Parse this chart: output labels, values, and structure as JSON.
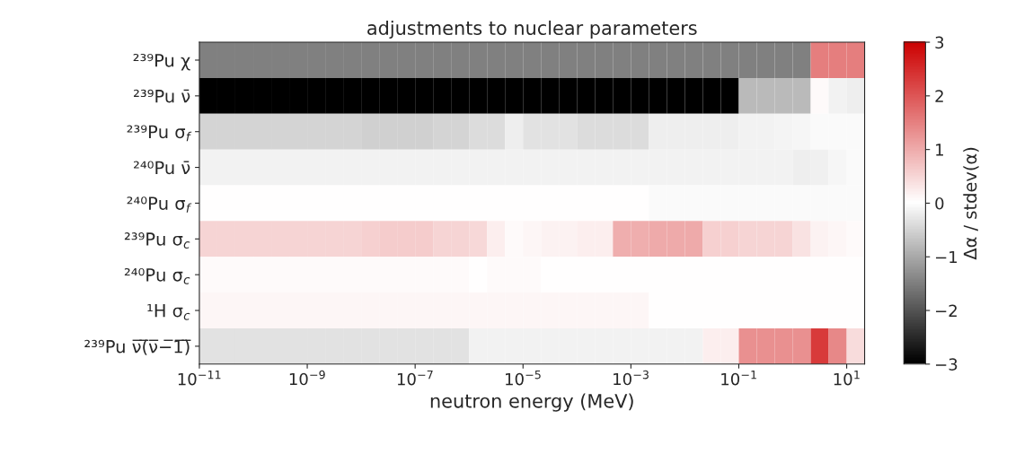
{
  "chart_data": {
    "type": "heatmap",
    "title": "adjustments to nuclear parameters",
    "xlabel": "neutron energy (MeV)",
    "clabel": "Δα / stdev(α)",
    "log": "x",
    "x": [
      1.47e-11,
      3.16e-11,
      6.81e-11,
      1.47e-10,
      3.16e-10,
      6.81e-10,
      1.47e-09,
      3.16e-09,
      6.81e-09,
      1.47e-08,
      3.16e-08,
      6.81e-08,
      1.47e-07,
      3.16e-07,
      6.81e-07,
      1.47e-06,
      3.16e-06,
      6.81e-06,
      1.47e-05,
      3.16e-05,
      6.81e-05,
      0.000147,
      0.000316,
      0.000681,
      0.00147,
      0.00316,
      0.00681,
      0.0147,
      0.0316,
      0.0681,
      0.147,
      0.316,
      0.681,
      1.47,
      3.16,
      6.81,
      14.7
    ],
    "xlim": [
      1e-11,
      21.5
    ],
    "xticks": [
      {
        "value": 1e-11,
        "label": "10$^{−11}$"
      },
      {
        "value": 1e-09,
        "label": "10$^{−9}$"
      },
      {
        "value": 1e-07,
        "label": "10$^{−7}$"
      },
      {
        "value": 1e-05,
        "label": "10$^{−5}$"
      },
      {
        "value": 0.001,
        "label": "10$^{−3}$"
      },
      {
        "value": 0.1,
        "label": "10$^{−1}$"
      },
      {
        "value": 10,
        "label": "10$^{1}$"
      }
    ],
    "y_categories": [
      "²³⁹Pu χ",
      "²³⁹Pu ν̄",
      "²³⁹Pu σ$_{f}$",
      "²⁴⁰Pu ν̄",
      "²⁴⁰Pu σ$_{f}$",
      "²³⁹Pu σ$_{c}$",
      "²⁴⁰Pu σ$_{c}$",
      "¹H σ$_{c}$",
      "²³⁹Pu ν̅(̅ν̅−̅1̅)̅"
    ],
    "cells": [
      [
        -1.5,
        -1.5,
        -1.5,
        -1.5,
        -1.5,
        -1.5,
        -1.5,
        -1.5,
        -1.5,
        -1.5,
        -1.5,
        -1.5,
        -1.5,
        -1.5,
        -1.5,
        -1.5,
        -1.5,
        -1.5,
        -1.5,
        -1.5,
        -1.5,
        -1.5,
        -1.5,
        -1.5,
        -1.5,
        -1.5,
        -1.5,
        -1.5,
        -1.5,
        -1.5,
        -1.5,
        -1.5,
        -1.5,
        -1.5,
        1.5,
        1.5,
        1.5
      ],
      [
        -3,
        -3,
        -3,
        -3,
        -3,
        -3,
        -3,
        -3,
        -3,
        -3,
        -3,
        -3,
        -3,
        -3,
        -3,
        -3,
        -3,
        -3,
        -3,
        -3,
        -3,
        -3,
        -3,
        -3,
        -3,
        -3,
        -3,
        -3,
        -3,
        -3,
        -0.8,
        -0.8,
        -0.8,
        -0.8,
        0.05,
        -0.15,
        -0.2
      ],
      [
        -0.5,
        -0.5,
        -0.5,
        -0.5,
        -0.5,
        -0.5,
        -0.5,
        -0.5,
        -0.5,
        -0.55,
        -0.55,
        -0.55,
        -0.55,
        -0.5,
        -0.5,
        -0.4,
        -0.4,
        -0.2,
        -0.35,
        -0.35,
        -0.35,
        -0.4,
        -0.4,
        -0.4,
        -0.4,
        -0.2,
        -0.2,
        -0.2,
        -0.2,
        -0.2,
        -0.15,
        -0.15,
        -0.12,
        -0.1,
        -0.05,
        -0.05,
        -0.05
      ],
      [
        -0.15,
        -0.15,
        -0.15,
        -0.15,
        -0.15,
        -0.15,
        -0.15,
        -0.15,
        -0.15,
        -0.15,
        -0.15,
        -0.15,
        -0.15,
        -0.15,
        -0.15,
        -0.15,
        -0.15,
        -0.15,
        -0.15,
        -0.15,
        -0.15,
        -0.15,
        -0.15,
        -0.15,
        -0.15,
        -0.15,
        -0.15,
        -0.15,
        -0.15,
        -0.15,
        -0.15,
        -0.15,
        -0.15,
        -0.2,
        -0.18,
        -0.1,
        -0.05
      ],
      [
        0,
        0,
        0,
        0,
        0,
        0,
        0,
        0,
        0,
        0,
        0,
        0,
        0,
        0,
        0,
        0,
        0,
        0,
        0,
        0,
        0,
        0,
        0,
        0,
        0,
        -0.05,
        -0.05,
        -0.05,
        -0.05,
        -0.05,
        -0.05,
        -0.05,
        -0.05,
        -0.05,
        -0.05,
        -0.05,
        -0.05
      ],
      [
        0.5,
        0.5,
        0.5,
        0.5,
        0.5,
        0.5,
        0.5,
        0.5,
        0.5,
        0.55,
        0.6,
        0.6,
        0.6,
        0.5,
        0.5,
        0.45,
        0.2,
        0.05,
        0.1,
        0.15,
        0.15,
        0.2,
        0.2,
        0.95,
        0.95,
        1.0,
        1.0,
        1.0,
        0.55,
        0.55,
        0.5,
        0.5,
        0.5,
        0.35,
        0.15,
        0.1,
        0.05
      ],
      [
        0.05,
        0.05,
        0.05,
        0.05,
        0.05,
        0.05,
        0.05,
        0.05,
        0.05,
        0.05,
        0.05,
        0.05,
        0.05,
        0.05,
        0.05,
        0,
        0.05,
        0.05,
        0.05,
        0,
        0,
        0,
        0,
        0,
        0,
        0,
        0,
        0,
        0,
        0,
        0,
        0,
        0,
        0,
        0,
        0,
        0
      ],
      [
        0.1,
        0.1,
        0.1,
        0.1,
        0.1,
        0.1,
        0.1,
        0.1,
        0.1,
        0.1,
        0.1,
        0.1,
        0.1,
        0.1,
        0.1,
        0.1,
        0.1,
        0.1,
        0.1,
        0.1,
        0.1,
        0.1,
        0.1,
        0.1,
        0.1,
        0,
        0,
        0,
        0,
        0,
        0,
        0,
        0,
        0,
        0,
        0,
        0
      ],
      [
        -0.35,
        -0.35,
        -0.35,
        -0.35,
        -0.35,
        -0.35,
        -0.35,
        -0.35,
        -0.35,
        -0.35,
        -0.35,
        -0.35,
        -0.35,
        -0.35,
        -0.35,
        -0.15,
        -0.15,
        -0.15,
        -0.15,
        -0.15,
        -0.15,
        -0.15,
        -0.15,
        -0.15,
        -0.15,
        -0.15,
        -0.15,
        -0.15,
        0.2,
        0.2,
        1.3,
        1.3,
        1.3,
        1.3,
        2.3,
        1.4,
        0.4
      ]
    ],
    "clim": [
      -3,
      3
    ],
    "cticks": [
      {
        "value": -3,
        "label": "−3"
      },
      {
        "value": -2,
        "label": "−2"
      },
      {
        "value": -1,
        "label": "−1"
      },
      0,
      1,
      2,
      3
    ]
  }
}
